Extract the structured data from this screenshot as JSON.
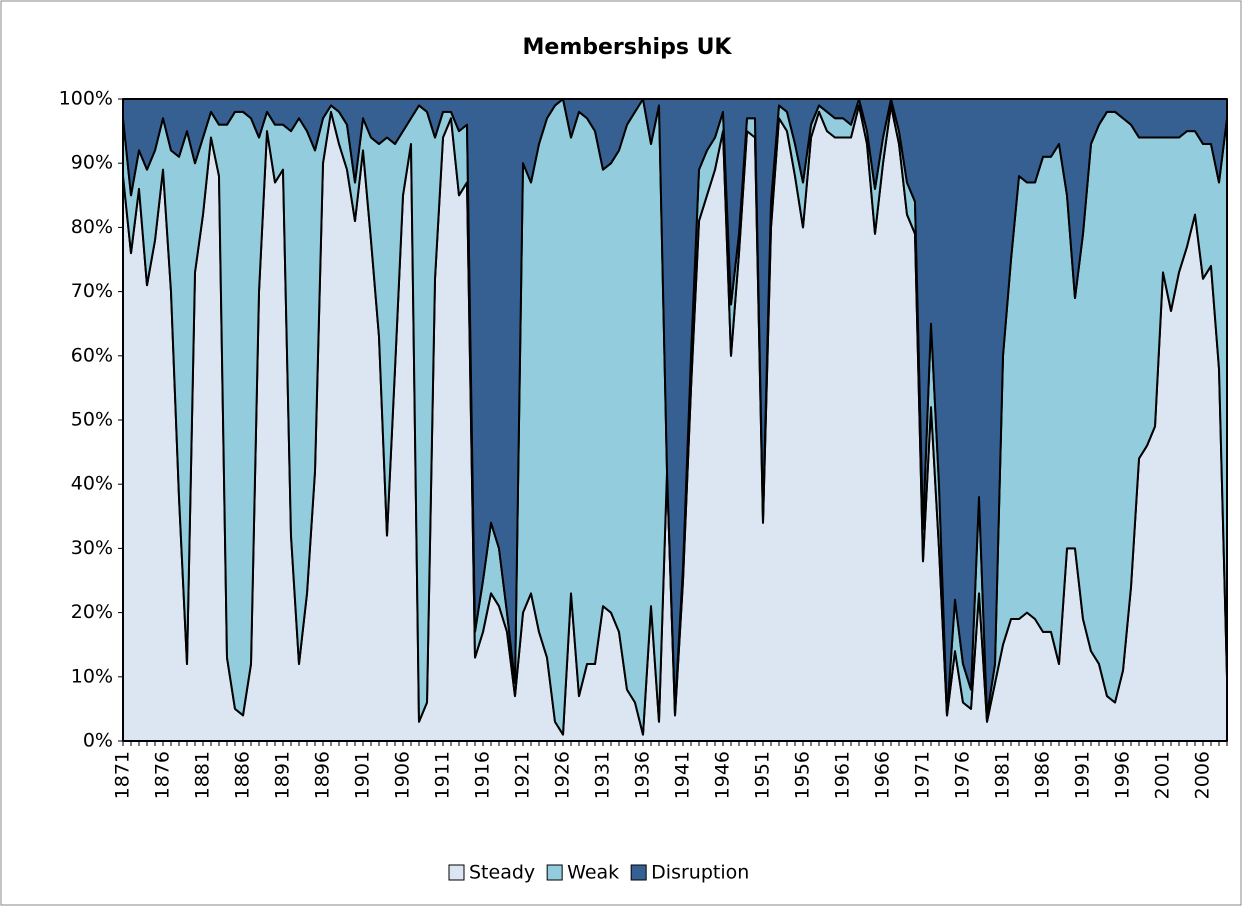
{
  "chart_data": {
    "type": "stacked_area",
    "title": "Memberships UK",
    "categories": [
      "1871",
      null,
      null,
      null,
      null,
      "1876",
      null,
      null,
      null,
      null,
      "1881",
      null,
      null,
      null,
      null,
      "1886",
      null,
      null,
      null,
      null,
      "1891",
      null,
      null,
      null,
      null,
      "1896",
      null,
      null,
      null,
      null,
      "1901",
      null,
      null,
      null,
      null,
      "1906",
      null,
      null,
      null,
      null,
      "1911",
      null,
      null,
      null,
      null,
      "1916",
      null,
      null,
      null,
      null,
      "1921",
      null,
      null,
      null,
      null,
      "1926",
      null,
      null,
      null,
      null,
      "1931",
      null,
      null,
      null,
      null,
      "1936",
      null,
      null,
      null,
      null,
      "1941",
      null,
      null,
      null,
      null,
      "1946",
      null,
      null,
      null,
      null,
      "1951",
      null,
      null,
      null,
      null,
      "1956",
      null,
      null,
      null,
      null,
      "1961",
      null,
      null,
      null,
      null,
      "1966",
      null,
      null,
      null,
      null,
      "1971",
      null,
      null,
      null,
      null,
      "1976",
      null,
      null,
      null,
      null,
      "1981",
      null,
      null,
      null,
      null,
      "1986",
      null,
      null,
      null,
      null,
      "1991",
      null,
      null,
      null,
      null,
      "1996",
      null,
      null,
      null,
      null,
      "2001",
      null,
      null,
      null,
      null,
      "2006",
      null,
      null,
      null
    ],
    "series": [
      {
        "name": "Steady",
        "color": "#dce6f2",
        "values": [
          88,
          76,
          86,
          71,
          78,
          89,
          70,
          38,
          12,
          73,
          82,
          94,
          88,
          13,
          5,
          4,
          12,
          70,
          95,
          87,
          89,
          32,
          12,
          23,
          42,
          90,
          98,
          93,
          89,
          81,
          92,
          78,
          63,
          32,
          58,
          85,
          93,
          3,
          6,
          72,
          94,
          97,
          85,
          87,
          13,
          17,
          23,
          21,
          17,
          7,
          20,
          23,
          17,
          13,
          3,
          1,
          23,
          7,
          12,
          12,
          21,
          20,
          17,
          8,
          6,
          1,
          21,
          3,
          42,
          4,
          25,
          55,
          81,
          85,
          89,
          95,
          60,
          76,
          95,
          94,
          34,
          80,
          97,
          95,
          88,
          80,
          94,
          98,
          95,
          94,
          94,
          94,
          99,
          93,
          79,
          90,
          99,
          93,
          82,
          79,
          28,
          52,
          30,
          4,
          14,
          6,
          5,
          23,
          3,
          9,
          15,
          19,
          19,
          20,
          19,
          17,
          17,
          12,
          30,
          30,
          19,
          14,
          12,
          7,
          6,
          11,
          24,
          44,
          46,
          49,
          73,
          67,
          73,
          77,
          82,
          72,
          74,
          58,
          10
        ]
      },
      {
        "name": "Weak",
        "color": "#93cddd",
        "values": [
          9,
          9,
          6,
          18,
          14,
          8,
          22,
          53,
          83,
          17,
          12,
          4,
          8,
          83,
          93,
          94,
          85,
          24,
          3,
          9,
          7,
          63,
          85,
          72,
          50,
          7,
          1,
          5,
          7,
          6,
          5,
          16,
          30,
          62,
          35,
          10,
          4,
          96,
          92,
          22,
          4,
          1,
          10,
          9,
          4,
          8,
          11,
          9,
          3,
          2,
          70,
          64,
          76,
          84,
          96,
          99,
          71,
          91,
          85,
          83,
          68,
          70,
          75,
          88,
          92,
          99,
          72,
          96,
          0,
          1,
          2,
          5,
          8,
          7,
          5,
          3,
          8,
          3,
          2,
          3,
          1,
          4,
          2,
          3,
          5,
          7,
          2,
          1,
          3,
          3,
          3,
          2,
          1,
          2,
          7,
          4,
          1,
          2,
          5,
          5,
          5,
          13,
          10,
          0,
          8,
          6,
          3,
          15,
          1,
          3,
          45,
          56,
          69,
          67,
          68,
          74,
          74,
          81,
          55,
          39,
          60,
          79,
          84,
          91,
          92,
          86,
          72,
          50,
          48,
          45,
          21,
          27,
          21,
          18,
          13,
          21,
          19,
          29,
          87
        ]
      },
      {
        "name": "Disruption",
        "color": "#376092",
        "values": [
          3,
          15,
          8,
          11,
          8,
          3,
          8,
          9,
          5,
          10,
          6,
          2,
          4,
          4,
          2,
          2,
          3,
          6,
          2,
          4,
          4,
          5,
          3,
          5,
          8,
          3,
          1,
          2,
          4,
          13,
          3,
          6,
          7,
          6,
          7,
          5,
          3,
          1,
          2,
          6,
          2,
          2,
          5,
          4,
          83,
          75,
          66,
          70,
          80,
          91,
          10,
          13,
          7,
          3,
          1,
          0,
          6,
          2,
          3,
          5,
          11,
          10,
          8,
          4,
          2,
          0,
          7,
          1,
          58,
          95,
          73,
          40,
          11,
          8,
          6,
          2,
          32,
          21,
          3,
          3,
          65,
          16,
          1,
          2,
          7,
          13,
          4,
          1,
          2,
          3,
          3,
          4,
          0,
          5,
          14,
          6,
          0,
          5,
          13,
          16,
          67,
          35,
          60,
          96,
          78,
          88,
          92,
          62,
          96,
          88,
          40,
          25,
          12,
          13,
          13,
          9,
          9,
          7,
          15,
          31,
          21,
          7,
          4,
          2,
          2,
          3,
          4,
          6,
          6,
          6,
          6,
          6,
          6,
          5,
          5,
          7,
          7,
          13,
          3
        ]
      }
    ],
    "ylim": [
      0,
      100
    ],
    "yticks": [
      {
        "value": 0,
        "label": "0%"
      },
      {
        "value": 10,
        "label": "10%"
      },
      {
        "value": 20,
        "label": "20%"
      },
      {
        "value": 30,
        "label": "30%"
      },
      {
        "value": 40,
        "label": "40%"
      },
      {
        "value": 50,
        "label": "50%"
      },
      {
        "value": 60,
        "label": "60%"
      },
      {
        "value": 70,
        "label": "70%"
      },
      {
        "value": 80,
        "label": "80%"
      },
      {
        "value": 90,
        "label": "90%"
      },
      {
        "value": 100,
        "label": "100%"
      }
    ],
    "legend": "bottom"
  }
}
